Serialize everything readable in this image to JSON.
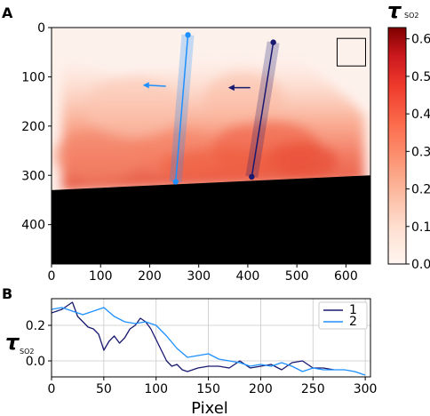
{
  "panel_a": {
    "label": "A",
    "x_ticks": [
      0,
      100,
      200,
      300,
      400,
      500,
      600
    ],
    "y_ticks": [
      0,
      100,
      200,
      300,
      400
    ],
    "xlim": [
      0,
      650
    ],
    "ylim": [
      480,
      0
    ],
    "colorbar": {
      "label_tau": "τ",
      "label_sub": "SO2",
      "ticks": [
        "0.0",
        "0.1",
        "0.2",
        "0.3",
        "0.4",
        "0.5",
        "0.6"
      ],
      "range": [
        0,
        0.63
      ],
      "cmap": "Reds"
    }
  },
  "panel_b": {
    "label": "B",
    "xlabel": "Pixel",
    "ylabel_tau": "τ",
    "ylabel_sub": "SO2"
  },
  "chart_data": [
    {
      "type": "heatmap",
      "panel": "A",
      "xlim": [
        0,
        650
      ],
      "ylim": [
        480,
        0
      ],
      "cmap": "Reds",
      "vmin": 0,
      "vmax": 0.63,
      "ground_line": [
        [
          0,
          330
        ],
        [
          650,
          300
        ]
      ],
      "lines": [
        {
          "name": "1",
          "color": "#191970",
          "start": [
            452,
            30
          ],
          "end": [
            408,
            303
          ],
          "arrow": [
            405,
            122,
            360,
            122
          ]
        },
        {
          "name": "2",
          "color": "#1e90ff",
          "start": [
            278,
            15
          ],
          "end": [
            253,
            313
          ],
          "arrow": [
            233,
            119,
            186,
            117
          ]
        }
      ],
      "box": {
        "x0": 582,
        "y0": 22,
        "x1": 640,
        "y1": 78
      }
    },
    {
      "type": "line",
      "panel": "B",
      "xlabel": "Pixel",
      "ylabel": "τSO2",
      "xlim": [
        0,
        305
      ],
      "ylim": [
        -0.09,
        0.35
      ],
      "x_ticks": [
        0,
        50,
        100,
        150,
        200,
        250,
        300
      ],
      "y_ticks": [
        -0.0,
        0.2
      ],
      "y_tick_labels": [
        "0.0",
        "0.2"
      ],
      "grid": true,
      "legend": "top-right",
      "series": [
        {
          "name": "1",
          "color": "#191970",
          "x": [
            0,
            10,
            20,
            25,
            30,
            35,
            40,
            45,
            50,
            55,
            60,
            65,
            70,
            75,
            80,
            85,
            90,
            95,
            100,
            105,
            110,
            115,
            120,
            125,
            130,
            140,
            150,
            160,
            170,
            180,
            190,
            200,
            210,
            220,
            230,
            240,
            250,
            260,
            270
          ],
          "values": [
            0.27,
            0.29,
            0.33,
            0.25,
            0.22,
            0.19,
            0.18,
            0.15,
            0.06,
            0.11,
            0.14,
            0.1,
            0.13,
            0.18,
            0.2,
            0.24,
            0.22,
            0.18,
            0.12,
            0.06,
            0.0,
            -0.03,
            -0.02,
            -0.05,
            -0.06,
            -0.04,
            -0.03,
            -0.03,
            -0.04,
            0.0,
            -0.04,
            -0.03,
            -0.02,
            -0.05,
            -0.01,
            0.0,
            -0.04,
            -0.04,
            -0.05
          ]
        },
        {
          "name": "2",
          "color": "#1e90ff",
          "x": [
            0,
            10,
            20,
            30,
            40,
            50,
            60,
            70,
            80,
            90,
            100,
            110,
            120,
            130,
            140,
            150,
            160,
            170,
            180,
            190,
            200,
            210,
            220,
            230,
            240,
            250,
            260,
            270,
            280,
            290,
            300
          ],
          "values": [
            0.29,
            0.3,
            0.28,
            0.26,
            0.28,
            0.3,
            0.25,
            0.22,
            0.21,
            0.22,
            0.2,
            0.14,
            0.07,
            0.02,
            0.03,
            0.04,
            0.01,
            0.0,
            -0.01,
            -0.03,
            -0.02,
            -0.03,
            -0.01,
            -0.03,
            -0.06,
            -0.04,
            -0.05,
            -0.05,
            -0.05,
            -0.06,
            -0.08
          ]
        }
      ]
    }
  ]
}
